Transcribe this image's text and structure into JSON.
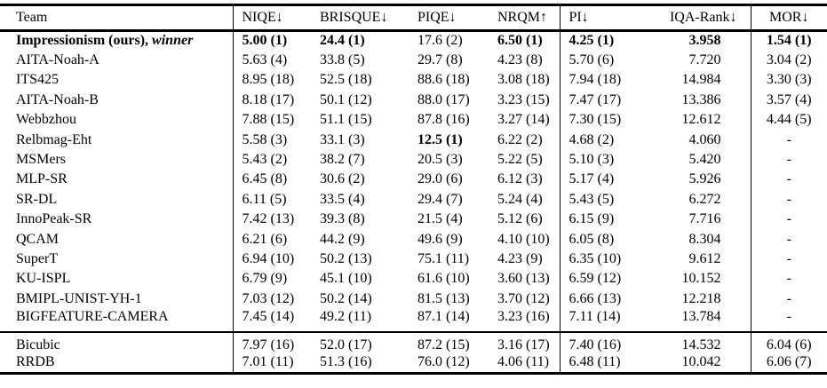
{
  "colors": {
    "text": "#000000",
    "background": "#ffffff",
    "rules": "#000000"
  },
  "table": {
    "header": [
      "Team",
      "NIQE↓",
      "BRISQUE↓",
      "PIQE↓",
      "NRQM↑",
      "PI↓",
      "IQA-Rank↓",
      "MOR↓"
    ],
    "rows": [
      {
        "team": "Impressionism (ours),",
        "team_suffix": "winner",
        "team_bold": true,
        "cells": [
          {
            "text": "5.00 (1)",
            "bold": true
          },
          {
            "text": "24.4 (1)",
            "bold": true
          },
          {
            "text": "17.6 (2)"
          },
          {
            "text": "6.50 (1)",
            "bold": true
          },
          {
            "text": "4.25 (1)",
            "bold": true
          },
          {
            "text": "3.958",
            "bold": true
          },
          {
            "text": "1.54 (1)",
            "bold": true
          }
        ]
      },
      {
        "team": "AITA-Noah-A",
        "cells": [
          {
            "text": "5.63 (4)"
          },
          {
            "text": "33.8 (5)"
          },
          {
            "text": "29.7 (8)"
          },
          {
            "text": "4.23 (8)"
          },
          {
            "text": "5.70 (6)"
          },
          {
            "text": "7.720"
          },
          {
            "text": "3.04 (2)"
          }
        ]
      },
      {
        "team": "ITS425",
        "cells": [
          {
            "text": "8.95 (18)"
          },
          {
            "text": "52.5 (18)"
          },
          {
            "text": "88.6 (18)"
          },
          {
            "text": "3.08 (18)"
          },
          {
            "text": "7.94 (18)"
          },
          {
            "text": "14.984"
          },
          {
            "text": "3.30 (3)"
          }
        ]
      },
      {
        "team": "AITA-Noah-B",
        "cells": [
          {
            "text": "8.18 (17)"
          },
          {
            "text": "50.1 (12)"
          },
          {
            "text": "88.0 (17)"
          },
          {
            "text": "3.23 (15)"
          },
          {
            "text": "7.47 (17)"
          },
          {
            "text": "13.386"
          },
          {
            "text": "3.57 (4)"
          }
        ]
      },
      {
        "team": "Webbzhou",
        "cells": [
          {
            "text": "7.88 (15)"
          },
          {
            "text": "51.1 (15)"
          },
          {
            "text": "87.8 (16)"
          },
          {
            "text": "3.27 (14)"
          },
          {
            "text": "7.30 (15)"
          },
          {
            "text": "12.612"
          },
          {
            "text": "4.44 (5)"
          }
        ]
      },
      {
        "team": "Relbmag-Eht",
        "cells": [
          {
            "text": "5.58 (3)"
          },
          {
            "text": "33.1 (3)"
          },
          {
            "text": "12.5 (1)",
            "bold": true
          },
          {
            "text": "6.22 (2)"
          },
          {
            "text": "4.68 (2)"
          },
          {
            "text": "4.060"
          },
          {
            "text": "-"
          }
        ]
      },
      {
        "team": "MSMers",
        "cells": [
          {
            "text": "5.43 (2)"
          },
          {
            "text": "38.2 (7)"
          },
          {
            "text": "20.5 (3)"
          },
          {
            "text": "5.22 (5)"
          },
          {
            "text": "5.10 (3)"
          },
          {
            "text": "5.420"
          },
          {
            "text": "-"
          }
        ]
      },
      {
        "team": "MLP-SR",
        "cells": [
          {
            "text": "6.45 (8)"
          },
          {
            "text": "30.6 (2)"
          },
          {
            "text": "29.0 (6)"
          },
          {
            "text": "6.12 (3)"
          },
          {
            "text": "5.17 (4)"
          },
          {
            "text": "5.926"
          },
          {
            "text": "-"
          }
        ]
      },
      {
        "team": "SR-DL",
        "cells": [
          {
            "text": "6.11 (5)"
          },
          {
            "text": "33.5 (4)"
          },
          {
            "text": "29.4 (7)"
          },
          {
            "text": "5.24 (4)"
          },
          {
            "text": "5.43 (5)"
          },
          {
            "text": "6.272"
          },
          {
            "text": "-"
          }
        ]
      },
      {
        "team": "InnoPeak-SR",
        "cells": [
          {
            "text": "7.42 (13)"
          },
          {
            "text": "39.3 (8)"
          },
          {
            "text": "21.5 (4)"
          },
          {
            "text": "5.12 (6)"
          },
          {
            "text": "6.15 (9)"
          },
          {
            "text": "7.716"
          },
          {
            "text": "-"
          }
        ]
      },
      {
        "team": "QCAM",
        "cells": [
          {
            "text": "6.21 (6)"
          },
          {
            "text": "44.2 (9)"
          },
          {
            "text": "49.6 (9)"
          },
          {
            "text": "4.10 (10)"
          },
          {
            "text": "6.05 (8)"
          },
          {
            "text": "8.304"
          },
          {
            "text": "-"
          }
        ]
      },
      {
        "team": "SuperT",
        "cells": [
          {
            "text": "6.94 (10)"
          },
          {
            "text": "50.2 (13)"
          },
          {
            "text": "75.1 (11)"
          },
          {
            "text": "4.23 (9)"
          },
          {
            "text": "6.35 (10)"
          },
          {
            "text": "9.612"
          },
          {
            "text": "-"
          }
        ]
      },
      {
        "team": "KU-ISPL",
        "cells": [
          {
            "text": "6.79 (9)"
          },
          {
            "text": "45.1 (10)"
          },
          {
            "text": "61.6 (10)"
          },
          {
            "text": "3.60 (13)"
          },
          {
            "text": "6.59 (12)"
          },
          {
            "text": "10.152"
          },
          {
            "text": "-"
          }
        ]
      },
      {
        "team": "BMIPL-UNIST-YH-1",
        "cells": [
          {
            "text": "7.03 (12)"
          },
          {
            "text": "50.2 (14)"
          },
          {
            "text": "81.5 (13)"
          },
          {
            "text": "3.70 (12)"
          },
          {
            "text": "6.66 (13)"
          },
          {
            "text": "12.218"
          },
          {
            "text": "-"
          }
        ]
      },
      {
        "team": "BIGFEATURE-CAMERA",
        "cells": [
          {
            "text": "7.45 (14)"
          },
          {
            "text": "49.2 (11)"
          },
          {
            "text": "87.1 (14)"
          },
          {
            "text": "3.23 (16)"
          },
          {
            "text": "7.11 (14)"
          },
          {
            "text": "13.784"
          },
          {
            "text": "-"
          }
        ]
      }
    ],
    "baseline_rows": [
      {
        "team": "Bicubic",
        "cells": [
          {
            "text": "7.97 (16)"
          },
          {
            "text": "52.0 (17)"
          },
          {
            "text": "87.2 (15)"
          },
          {
            "text": "3.16 (17)"
          },
          {
            "text": "7.40 (16)"
          },
          {
            "text": "14.532"
          },
          {
            "text": "6.04 (6)"
          }
        ]
      },
      {
        "team": "RRDB",
        "cells": [
          {
            "text": "7.01 (11)"
          },
          {
            "text": "51.3 (16)"
          },
          {
            "text": "76.0 (12)"
          },
          {
            "text": "4.06 (11)"
          },
          {
            "text": "6.48 (11)"
          },
          {
            "text": "10.042"
          },
          {
            "text": "6.06 (7)"
          }
        ]
      }
    ]
  }
}
